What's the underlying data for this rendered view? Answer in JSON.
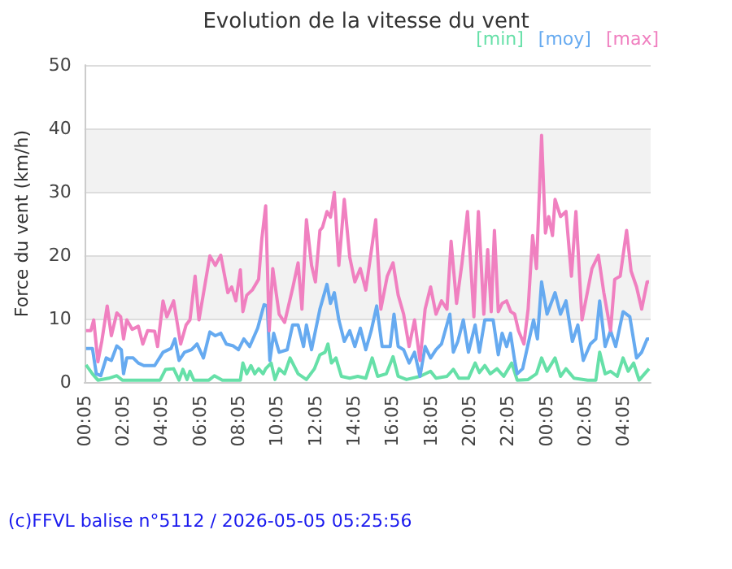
{
  "chart_data": {
    "type": "line",
    "title": "Evolution de la vitesse du vent",
    "ylabel": "Force du vent (km/h)",
    "annotations": [
      "(c)FFVL balise n°5112 / 2026-05-05 05:25:56"
    ],
    "xlim": [
      "2026-05-04T00:05",
      "2026-05-05T05:30"
    ],
    "ylim": [
      0,
      50
    ],
    "yticks": [
      0,
      10,
      20,
      30,
      40,
      50
    ],
    "xticks": [
      {
        "value": "2026-05-04T00:05",
        "label": "00:05"
      },
      {
        "value": "2026-05-04T02:05",
        "label": "02:05"
      },
      {
        "value": "2026-05-04T04:05",
        "label": "04:05"
      },
      {
        "value": "2026-05-04T06:05",
        "label": "06:05"
      },
      {
        "value": "2026-05-04T08:05",
        "label": "08:05"
      },
      {
        "value": "2026-05-04T10:05",
        "label": "10:05"
      },
      {
        "value": "2026-05-04T12:05",
        "label": "12:05"
      },
      {
        "value": "2026-05-04T14:05",
        "label": "14:05"
      },
      {
        "value": "2026-05-04T16:05",
        "label": "16:05"
      },
      {
        "value": "2026-05-04T18:05",
        "label": "18:05"
      },
      {
        "value": "2026-05-04T20:05",
        "label": "20:05"
      },
      {
        "value": "2026-05-04T22:05",
        "label": "22:05"
      },
      {
        "value": "2026-05-05T00:05",
        "label": "00:05"
      },
      {
        "value": "2026-05-05T02:05",
        "label": "02:05"
      },
      {
        "value": "2026-05-05T04:05",
        "label": "04:05"
      }
    ],
    "grid": "y",
    "legend": "top right",
    "marker": "none",
    "line_style": "solid",
    "series": [
      {
        "name": "[min]",
        "color": "#66e0a8",
        "x": [
          "2026-05-04T00:10",
          "2026-05-04T00:30",
          "2026-05-04T00:47",
          "2026-05-04T01:21",
          "2026-05-04T01:46",
          "2026-05-04T02:03",
          "2026-05-04T04:01",
          "2026-05-04T04:18",
          "2026-05-04T04:43",
          "2026-05-04T05:00",
          "2026-05-04T05:12",
          "2026-05-04T05:25",
          "2026-05-04T05:34",
          "2026-05-04T05:46",
          "2026-05-04T06:33",
          "2026-05-04T06:50",
          "2026-05-04T07:15",
          "2026-05-04T08:11",
          "2026-05-04T08:19",
          "2026-05-04T08:31",
          "2026-05-04T08:44",
          "2026-05-04T08:56",
          "2026-05-04T09:08",
          "2026-05-04T09:22",
          "2026-05-04T09:30",
          "2026-05-04T09:47",
          "2026-05-04T09:59",
          "2026-05-04T10:12",
          "2026-05-04T10:29",
          "2026-05-04T10:46",
          "2026-05-04T11:11",
          "2026-05-04T11:37",
          "2026-05-04T12:02",
          "2026-05-04T12:19",
          "2026-05-04T12:35",
          "2026-05-04T12:44",
          "2026-05-04T12:55",
          "2026-05-04T13:09",
          "2026-05-04T13:26",
          "2026-05-04T13:52",
          "2026-05-04T14:17",
          "2026-05-04T14:42",
          "2026-05-04T15:02",
          "2026-05-04T15:19",
          "2026-05-04T15:46",
          "2026-05-04T16:07",
          "2026-05-04T16:23",
          "2026-05-04T16:49",
          "2026-05-04T17:31",
          "2026-05-04T18:04",
          "2026-05-04T18:21",
          "2026-05-04T18:55",
          "2026-05-04T19:15",
          "2026-05-04T19:32",
          "2026-05-04T20:02",
          "2026-05-04T20:23",
          "2026-05-04T20:36",
          "2026-05-04T20:53",
          "2026-05-04T21:10",
          "2026-05-04T21:31",
          "2026-05-04T21:52",
          "2026-05-04T22:17",
          "2026-05-04T22:34",
          "2026-05-04T23:08",
          "2026-05-04T23:34",
          "2026-05-04T23:50",
          "2026-05-05T00:07",
          "2026-05-05T00:32",
          "2026-05-05T00:49",
          "2026-05-05T01:06",
          "2026-05-05T01:31",
          "2026-05-05T02:14",
          "2026-05-05T02:39",
          "2026-05-05T02:51",
          "2026-05-05T03:08",
          "2026-05-05T03:25",
          "2026-05-05T03:46",
          "2026-05-05T04:04",
          "2026-05-05T04:20",
          "2026-05-05T04:37",
          "2026-05-05T04:54",
          "2026-05-05T05:11",
          "2026-05-05T05:25"
        ],
        "values": [
          2.7,
          1.3,
          0.3,
          0.6,
          1.0,
          0.3,
          0.3,
          2.0,
          2.1,
          0.3,
          2.0,
          0.4,
          1.7,
          0.3,
          0.3,
          1.0,
          0.3,
          0.3,
          3.0,
          1.3,
          2.6,
          1.3,
          2.1,
          1.3,
          2.1,
          3.0,
          0.4,
          2.1,
          1.3,
          3.8,
          1.3,
          0.4,
          2.1,
          4.3,
          4.7,
          6.0,
          3.0,
          3.8,
          0.9,
          0.6,
          0.9,
          0.6,
          3.8,
          0.9,
          1.3,
          4.0,
          0.9,
          0.4,
          0.9,
          1.7,
          0.6,
          0.9,
          2.0,
          0.6,
          0.6,
          3.0,
          1.5,
          2.6,
          1.3,
          2.1,
          0.9,
          3.0,
          0.3,
          0.4,
          1.3,
          3.8,
          1.7,
          3.8,
          0.9,
          2.1,
          0.6,
          0.3,
          0.3,
          4.7,
          1.3,
          1.7,
          0.9,
          3.8,
          1.7,
          3.0,
          0.3,
          1.3,
          2.1
        ]
      },
      {
        "name": "[moy]",
        "color": "#66aaf0",
        "x": [
          "2026-05-04T00:10",
          "2026-05-04T00:30",
          "2026-05-04T00:42",
          "2026-05-04T00:56",
          "2026-05-04T01:13",
          "2026-05-04T01:29",
          "2026-05-04T01:46",
          "2026-05-04T02:00",
          "2026-05-04T02:07",
          "2026-05-04T02:17",
          "2026-05-04T02:37",
          "2026-05-04T02:53",
          "2026-05-04T03:10",
          "2026-05-04T03:44",
          "2026-05-04T04:10",
          "2026-05-04T04:35",
          "2026-05-04T04:47",
          "2026-05-04T05:00",
          "2026-05-04T05:17",
          "2026-05-04T05:39",
          "2026-05-04T05:56",
          "2026-05-04T06:16",
          "2026-05-04T06:36",
          "2026-05-04T06:53",
          "2026-05-04T07:10",
          "2026-05-04T07:27",
          "2026-05-04T07:49",
          "2026-05-04T08:05",
          "2026-05-04T08:22",
          "2026-05-04T08:40",
          "2026-05-04T09:05",
          "2026-05-04T09:25",
          "2026-05-04T09:35",
          "2026-05-04T09:43",
          "2026-05-04T09:55",
          "2026-05-04T10:12",
          "2026-05-04T10:37",
          "2026-05-04T10:54",
          "2026-05-04T11:11",
          "2026-05-04T11:28",
          "2026-05-04T11:37",
          "2026-05-04T11:53",
          "2026-05-04T12:19",
          "2026-05-04T12:41",
          "2026-05-04T12:52",
          "2026-05-04T13:04",
          "2026-05-04T13:18",
          "2026-05-04T13:35",
          "2026-05-04T13:52",
          "2026-05-04T14:08",
          "2026-05-04T14:25",
          "2026-05-04T14:42",
          "2026-05-04T14:59",
          "2026-05-04T15:16",
          "2026-05-04T15:33",
          "2026-05-04T15:58",
          "2026-05-04T16:10",
          "2026-05-04T16:23",
          "2026-05-04T16:40",
          "2026-05-04T16:57",
          "2026-05-04T17:14",
          "2026-05-04T17:31",
          "2026-05-04T17:47",
          "2026-05-04T18:04",
          "2026-05-04T18:21",
          "2026-05-04T18:38",
          "2026-05-04T19:04",
          "2026-05-04T19:15",
          "2026-05-04T19:29",
          "2026-05-04T19:46",
          "2026-05-04T20:02",
          "2026-05-04T20:23",
          "2026-05-04T20:36",
          "2026-05-04T20:53",
          "2026-05-04T21:19",
          "2026-05-04T21:35",
          "2026-05-04T21:47",
          "2026-05-04T22:01",
          "2026-05-04T22:13",
          "2026-05-04T22:26",
          "2026-05-04T22:34",
          "2026-05-04T22:51",
          "2026-05-04T23:08",
          "2026-05-04T23:25",
          "2026-05-04T23:37",
          "2026-05-04T23:50",
          "2026-05-05T00:07",
          "2026-05-05T00:32",
          "2026-05-05T00:49",
          "2026-05-05T01:06",
          "2026-05-05T01:26",
          "2026-05-05T01:43",
          "2026-05-05T02:00",
          "2026-05-05T02:22",
          "2026-05-05T02:39",
          "2026-05-05T02:51",
          "2026-05-05T03:08",
          "2026-05-05T03:25",
          "2026-05-05T03:41",
          "2026-05-05T04:04",
          "2026-05-05T04:25",
          "2026-05-05T04:46",
          "2026-05-05T05:02",
          "2026-05-05T05:19",
          "2026-05-05T05:25"
        ],
        "values": [
          5.3,
          5.3,
          1.3,
          1.0,
          3.8,
          3.4,
          5.7,
          5.1,
          1.3,
          3.8,
          3.8,
          3.0,
          2.6,
          2.6,
          4.7,
          5.3,
          6.8,
          3.4,
          4.7,
          5.1,
          6.0,
          3.8,
          7.9,
          7.3,
          7.7,
          6.0,
          5.7,
          5.1,
          6.8,
          5.6,
          8.5,
          12.2,
          12.0,
          3.4,
          7.7,
          4.7,
          5.1,
          9.0,
          9.0,
          5.6,
          9.0,
          5.1,
          11.5,
          15.4,
          12.4,
          14.1,
          9.8,
          6.4,
          8.1,
          5.6,
          8.5,
          5.1,
          8.1,
          12.0,
          5.6,
          5.6,
          10.7,
          5.6,
          5.1,
          3.0,
          4.7,
          0.9,
          5.6,
          3.8,
          5.1,
          6.0,
          10.7,
          4.7,
          6.4,
          9.8,
          4.7,
          9.0,
          4.7,
          9.8,
          9.8,
          4.3,
          7.7,
          5.6,
          7.7,
          3.4,
          1.3,
          2.1,
          6.0,
          9.8,
          6.8,
          15.8,
          10.7,
          14.1,
          10.7,
          12.8,
          6.4,
          9.0,
          3.4,
          6.0,
          6.8,
          12.8,
          5.6,
          8.1,
          5.6,
          11.1,
          10.3,
          3.8,
          4.7,
          6.8,
          6.8
        ]
      },
      {
        "name": "[max]",
        "color": "#f080c0",
        "x": [
          "2026-05-04T00:10",
          "2026-05-04T00:25",
          "2026-05-04T00:34",
          "2026-05-04T00:47",
          "2026-05-04T00:59",
          "2026-05-04T01:16",
          "2026-05-04T01:29",
          "2026-05-04T01:46",
          "2026-05-04T01:58",
          "2026-05-04T02:07",
          "2026-05-04T02:17",
          "2026-05-04T02:34",
          "2026-05-04T02:53",
          "2026-05-04T03:07",
          "2026-05-04T03:22",
          "2026-05-04T03:44",
          "2026-05-04T03:53",
          "2026-05-04T04:10",
          "2026-05-04T04:22",
          "2026-05-04T04:43",
          "2026-05-04T05:05",
          "2026-05-04T05:22",
          "2026-05-04T05:34",
          "2026-05-04T05:50",
          "2026-05-04T06:02",
          "2026-05-04T06:36",
          "2026-05-04T06:53",
          "2026-05-04T07:10",
          "2026-05-04T07:32",
          "2026-05-04T07:44",
          "2026-05-04T07:57",
          "2026-05-04T08:11",
          "2026-05-04T08:19",
          "2026-05-04T08:31",
          "2026-05-04T08:48",
          "2026-05-04T09:08",
          "2026-05-04T09:18",
          "2026-05-04T09:30",
          "2026-05-04T09:41",
          "2026-05-04T09:52",
          "2026-05-04T10:12",
          "2026-05-04T10:29",
          "2026-05-04T10:55",
          "2026-05-04T11:11",
          "2026-05-04T11:23",
          "2026-05-04T11:37",
          "2026-05-04T11:53",
          "2026-05-04T12:05",
          "2026-05-04T12:19",
          "2026-05-04T12:27",
          "2026-05-04T12:41",
          "2026-05-04T12:52",
          "2026-05-04T13:04",
          "2026-05-04T13:18",
          "2026-05-04T13:35",
          "2026-05-04T13:52",
          "2026-05-04T14:08",
          "2026-05-04T14:25",
          "2026-05-04T14:42",
          "2026-05-04T15:13",
          "2026-05-04T15:29",
          "2026-05-04T15:49",
          "2026-05-04T16:07",
          "2026-05-04T16:23",
          "2026-05-04T16:40",
          "2026-05-04T16:57",
          "2026-05-04T17:14",
          "2026-05-04T17:31",
          "2026-05-04T17:47",
          "2026-05-04T18:04",
          "2026-05-04T18:21",
          "2026-05-04T18:38",
          "2026-05-04T18:55",
          "2026-05-04T19:08",
          "2026-05-04T19:25",
          "2026-05-04T19:42",
          "2026-05-04T19:59",
          "2026-05-04T20:19",
          "2026-05-04T20:33",
          "2026-05-04T20:50",
          "2026-05-04T21:02",
          "2026-05-04T21:13",
          "2026-05-04T21:23",
          "2026-05-04T21:35",
          "2026-05-04T21:47",
          "2026-05-04T22:01",
          "2026-05-04T22:14",
          "2026-05-04T22:26",
          "2026-05-04T22:38",
          "2026-05-04T22:55",
          "2026-05-04T23:08",
          "2026-05-04T23:22",
          "2026-05-04T23:34",
          "2026-05-04T23:50",
          "2026-05-05T00:02",
          "2026-05-05T00:12",
          "2026-05-05T00:24",
          "2026-05-05T00:32",
          "2026-05-05T00:49",
          "2026-05-05T01:06",
          "2026-05-05T01:23",
          "2026-05-05T01:37",
          "2026-05-05T01:56",
          "2026-05-05T02:27",
          "2026-05-05T02:47",
          "2026-05-05T03:04",
          "2026-05-05T03:25",
          "2026-05-05T03:38",
          "2026-05-05T03:55",
          "2026-05-05T04:15",
          "2026-05-05T04:29",
          "2026-05-05T04:46",
          "2026-05-05T05:02",
          "2026-05-05T05:19",
          "2026-05-05T05:25"
        ],
        "values": [
          8.1,
          8.1,
          9.8,
          3.2,
          6.4,
          12.0,
          7.3,
          10.9,
          10.3,
          6.8,
          9.8,
          8.3,
          8.8,
          6.0,
          8.1,
          8.0,
          5.6,
          12.8,
          10.3,
          12.8,
          6.0,
          9.0,
          9.8,
          16.7,
          9.8,
          19.9,
          18.4,
          20.0,
          14.1,
          15.0,
          12.8,
          17.7,
          11.1,
          13.7,
          14.5,
          16.2,
          22.6,
          27.8,
          8.1,
          17.9,
          10.7,
          9.4,
          15.0,
          18.8,
          11.5,
          25.6,
          18.4,
          15.8,
          23.9,
          24.4,
          26.9,
          26.0,
          29.9,
          18.4,
          28.8,
          19.7,
          15.8,
          17.9,
          14.5,
          25.6,
          11.5,
          16.7,
          18.8,
          13.7,
          10.7,
          5.6,
          9.8,
          3.4,
          11.5,
          15.0,
          10.7,
          12.8,
          11.5,
          22.2,
          12.4,
          18.8,
          26.9,
          10.3,
          26.9,
          10.7,
          20.9,
          11.1,
          23.9,
          11.1,
          12.4,
          12.8,
          11.1,
          10.7,
          8.1,
          6.0,
          11.5,
          23.1,
          17.9,
          38.9,
          23.5,
          26.1,
          23.1,
          28.8,
          26.1,
          26.9,
          16.7,
          26.9,
          9.8,
          17.9,
          20.0,
          14.1,
          8.1,
          16.2,
          16.7,
          23.9,
          17.5,
          15.0,
          11.5,
          15.8,
          15.8
        ]
      }
    ]
  }
}
